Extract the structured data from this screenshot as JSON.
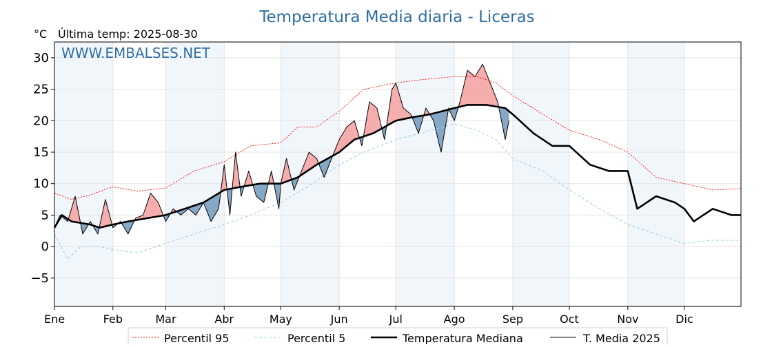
{
  "chart_data": {
    "type": "line",
    "title": "Temperatura Media diaria - Liceras",
    "unit_label": "°C",
    "last_temp_label": "Última temp: 2025-08-30",
    "watermark": "WWW.EMBALSES.NET",
    "xlabel": "",
    "ylabel": "",
    "x_unit": "day of year",
    "xlim": [
      1,
      365
    ],
    "ylim": [
      -9.5,
      32.5
    ],
    "yticks": [
      -5,
      0,
      5,
      10,
      15,
      20,
      25,
      30
    ],
    "ytick_labels": [
      "−5",
      "0",
      "5",
      "10",
      "15",
      "20",
      "25",
      "30"
    ],
    "months": [
      {
        "label": "Ene",
        "day": 1
      },
      {
        "label": "Feb",
        "day": 32
      },
      {
        "label": "Mar",
        "day": 60
      },
      {
        "label": "Abr",
        "day": 91
      },
      {
        "label": "May",
        "day": 121
      },
      {
        "label": "Jun",
        "day": 152
      },
      {
        "label": "Jul",
        "day": 182
      },
      {
        "label": "Ago",
        "day": 213
      },
      {
        "label": "Sep",
        "day": 244
      },
      {
        "label": "Oct",
        "day": 274
      },
      {
        "label": "Nov",
        "day": 305
      },
      {
        "label": "Dic",
        "day": 335
      }
    ],
    "shaded_month_bands": true,
    "grid": true,
    "legend_position": "bottom-center",
    "series": [
      {
        "name": "Percentil 95",
        "color": "#ff0000",
        "style": "dotted",
        "x": [
          1,
          10,
          20,
          32,
          45,
          60,
          75,
          91,
          105,
          121,
          130,
          140,
          152,
          165,
          182,
          195,
          213,
          225,
          235,
          244,
          260,
          274,
          290,
          305,
          320,
          335,
          350,
          365
        ],
        "y": [
          8.5,
          7.5,
          8.2,
          9.5,
          8.8,
          9.3,
          12,
          13.5,
          16,
          16.5,
          19,
          19,
          21.5,
          25,
          26,
          26.5,
          27,
          27,
          26,
          24,
          21,
          18.5,
          17,
          15,
          11,
          10,
          9,
          9.2
        ]
      },
      {
        "name": "Percentil 5",
        "color": "#9fd3e3",
        "style": "dashed",
        "x": [
          1,
          8,
          15,
          25,
          32,
          45,
          60,
          75,
          91,
          105,
          121,
          135,
          152,
          165,
          182,
          195,
          213,
          225,
          235,
          244,
          260,
          274,
          290,
          305,
          320,
          335,
          350,
          365
        ],
        "y": [
          2,
          -2,
          0,
          0,
          -0.5,
          -1,
          0.5,
          2,
          3.5,
          5,
          7,
          9.5,
          13,
          15,
          17,
          18,
          19.5,
          18.5,
          17,
          14,
          12,
          9,
          6,
          3.5,
          2,
          0.5,
          1,
          1
        ]
      },
      {
        "name": "Temperatura Mediana",
        "color": "#000000",
        "style": "solid-thick",
        "x": [
          1,
          5,
          10,
          20,
          25,
          32,
          40,
          50,
          60,
          70,
          80,
          91,
          100,
          110,
          121,
          130,
          140,
          152,
          160,
          170,
          182,
          190,
          200,
          213,
          220,
          230,
          240,
          244,
          255,
          265,
          274,
          285,
          295,
          305,
          310,
          320,
          330,
          335,
          340,
          350,
          360,
          365
        ],
        "y": [
          3,
          5,
          4,
          3.5,
          3,
          3.5,
          4,
          4.5,
          5,
          6,
          7,
          9,
          9.5,
          10,
          10,
          11,
          13,
          15,
          17,
          18,
          20,
          20.5,
          21,
          22,
          22.5,
          22.5,
          22,
          21,
          18,
          16,
          16,
          13,
          12,
          12,
          6,
          8,
          7,
          6,
          4,
          6,
          5,
          5
        ]
      },
      {
        "name": "T. Media 2025",
        "color": "#000000",
        "style": "solid-thin",
        "x": [
          1,
          4,
          8,
          12,
          16,
          20,
          24,
          28,
          32,
          36,
          40,
          44,
          48,
          52,
          56,
          60,
          64,
          68,
          72,
          76,
          80,
          84,
          88,
          91,
          94,
          97,
          100,
          104,
          108,
          112,
          116,
          120,
          121,
          124,
          128,
          132,
          136,
          140,
          144,
          148,
          152,
          156,
          160,
          164,
          168,
          172,
          176,
          180,
          182,
          186,
          190,
          194,
          198,
          202,
          206,
          210,
          213,
          216,
          220,
          224,
          228,
          232,
          236,
          240,
          242
        ],
        "y": [
          3,
          5,
          4,
          8,
          2,
          4,
          2,
          7.5,
          3,
          4,
          2,
          4.5,
          5,
          8.5,
          7,
          4,
          6,
          5,
          6,
          5,
          7,
          4,
          6,
          13,
          5,
          15,
          8,
          12,
          8,
          7,
          12,
          6,
          10,
          14,
          9,
          12,
          15,
          14,
          11,
          14,
          17,
          19,
          20,
          16,
          23,
          22,
          17,
          25,
          26,
          22,
          21,
          18,
          22,
          20,
          15,
          22,
          20,
          23,
          28,
          27,
          29,
          26,
          23,
          17,
          20
        ]
      }
    ]
  }
}
